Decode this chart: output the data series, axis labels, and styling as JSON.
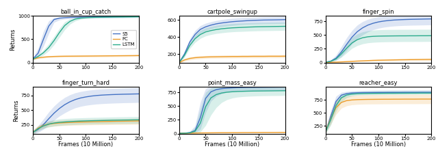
{
  "subplots": [
    {
      "title": "ball_in_cup_catch",
      "ylim": [
        0,
        1000
      ],
      "yticks": [
        0,
        500,
        1000
      ],
      "s5": [
        75,
        200,
        500,
        780,
        920,
        950,
        960,
        965,
        968,
        970,
        972,
        974,
        975,
        976,
        977,
        978,
        979,
        980,
        981,
        982,
        983
      ],
      "s5_lo": [
        50,
        120,
        350,
        620,
        860,
        910,
        930,
        940,
        945,
        948,
        950,
        952,
        953,
        954,
        955,
        956,
        957,
        958,
        959,
        960,
        961
      ],
      "s5_hi": [
        100,
        310,
        670,
        890,
        960,
        970,
        975,
        977,
        979,
        981,
        982,
        983,
        984,
        985,
        986,
        987,
        988,
        989,
        990,
        991,
        992
      ],
      "fc": [
        75,
        100,
        115,
        125,
        130,
        133,
        135,
        136,
        137,
        138,
        139,
        140,
        141,
        142,
        143,
        144,
        145,
        146,
        147,
        148,
        150
      ],
      "fc_lo": [
        60,
        80,
        95,
        105,
        110,
        112,
        114,
        115,
        116,
        117,
        118,
        119,
        120,
        121,
        122,
        123,
        124,
        125,
        126,
        127,
        128
      ],
      "fc_hi": [
        90,
        120,
        135,
        145,
        150,
        154,
        156,
        157,
        158,
        159,
        160,
        161,
        162,
        163,
        164,
        165,
        166,
        167,
        168,
        169,
        172
      ],
      "lstm": [
        75,
        130,
        210,
        320,
        470,
        640,
        790,
        880,
        930,
        950,
        960,
        965,
        968,
        970,
        972,
        974,
        975,
        976,
        977,
        978,
        980
      ],
      "lstm_lo": [
        55,
        100,
        160,
        250,
        380,
        540,
        700,
        820,
        890,
        925,
        940,
        948,
        952,
        955,
        957,
        959,
        960,
        961,
        962,
        963,
        965
      ],
      "lstm_hi": [
        95,
        165,
        270,
        400,
        560,
        730,
        870,
        935,
        960,
        970,
        975,
        978,
        980,
        982,
        984,
        986,
        987,
        988,
        989,
        990,
        992
      ]
    },
    {
      "title": "cartpole_swingup",
      "ylim": [
        100,
        650
      ],
      "yticks": [
        200,
        400,
        600
      ],
      "s5": [
        100,
        200,
        340,
        430,
        490,
        520,
        540,
        555,
        565,
        573,
        580,
        585,
        589,
        593,
        596,
        598,
        600,
        601,
        602,
        603,
        605
      ],
      "s5_lo": [
        90,
        175,
        305,
        385,
        445,
        476,
        497,
        512,
        522,
        530,
        536,
        542,
        546,
        549,
        552,
        554,
        556,
        557,
        558,
        559,
        561
      ],
      "s5_hi": [
        110,
        228,
        378,
        476,
        534,
        562,
        580,
        594,
        605,
        613,
        619,
        624,
        628,
        631,
        634,
        636,
        638,
        639,
        640,
        641,
        643
      ],
      "fc": [
        100,
        130,
        148,
        157,
        162,
        165,
        167,
        168,
        169,
        170,
        171,
        171,
        172,
        172,
        173,
        173,
        173,
        174,
        174,
        174,
        175
      ],
      "fc_lo": [
        90,
        115,
        130,
        140,
        145,
        148,
        150,
        151,
        152,
        153,
        153,
        154,
        154,
        155,
        155,
        155,
        156,
        156,
        156,
        156,
        157
      ],
      "fc_hi": [
        110,
        148,
        167,
        175,
        179,
        182,
        184,
        185,
        186,
        187,
        188,
        188,
        189,
        189,
        190,
        190,
        190,
        191,
        191,
        191,
        193
      ],
      "lstm": [
        100,
        185,
        300,
        380,
        430,
        460,
        476,
        488,
        497,
        503,
        508,
        511,
        514,
        517,
        519,
        521,
        522,
        523,
        524,
        525,
        526
      ],
      "lstm_lo": [
        90,
        163,
        265,
        337,
        384,
        413,
        429,
        441,
        449,
        456,
        461,
        464,
        466,
        469,
        471,
        473,
        474,
        475,
        476,
        477,
        478
      ],
      "lstm_hi": [
        110,
        209,
        338,
        425,
        477,
        508,
        524,
        537,
        546,
        553,
        558,
        561,
        564,
        566,
        568,
        570,
        571,
        572,
        573,
        574,
        575
      ]
    },
    {
      "title": "finger_spin",
      "ylim": [
        0,
        850
      ],
      "yticks": [
        0,
        250,
        500,
        750
      ],
      "s5": [
        5,
        25,
        80,
        190,
        330,
        460,
        560,
        630,
        680,
        714,
        738,
        754,
        765,
        773,
        778,
        782,
        785,
        787,
        789,
        791,
        793
      ],
      "s5_lo": [
        2,
        12,
        42,
        110,
        218,
        338,
        428,
        502,
        556,
        596,
        623,
        642,
        655,
        664,
        670,
        674,
        677,
        679,
        681,
        683,
        685
      ],
      "s5_hi": [
        9,
        46,
        136,
        288,
        450,
        582,
        680,
        744,
        786,
        814,
        833,
        847,
        857,
        864,
        869,
        873,
        876,
        879,
        881,
        883,
        885
      ],
      "fc": [
        2,
        5,
        8,
        12,
        17,
        22,
        27,
        31,
        35,
        39,
        42,
        44,
        46,
        48,
        50,
        51,
        53,
        54,
        55,
        56,
        57
      ],
      "fc_lo": [
        1,
        3,
        5,
        8,
        11,
        14,
        17,
        19,
        21,
        23,
        25,
        27,
        28,
        29,
        30,
        31,
        32,
        32,
        33,
        34,
        34
      ],
      "fc_hi": [
        4,
        8,
        12,
        17,
        23,
        30,
        38,
        44,
        49,
        55,
        59,
        62,
        64,
        67,
        70,
        72,
        74,
        76,
        77,
        79,
        80
      ],
      "lstm": [
        5,
        22,
        65,
        155,
        260,
        355,
        415,
        450,
        468,
        476,
        480,
        482,
        483,
        484,
        485,
        485,
        486,
        486,
        487,
        487,
        488
      ],
      "lstm_lo": [
        3,
        13,
        38,
        95,
        175,
        258,
        308,
        340,
        358,
        367,
        372,
        375,
        377,
        378,
        379,
        380,
        380,
        381,
        381,
        382,
        382
      ],
      "lstm_hi": [
        8,
        35,
        105,
        230,
        352,
        454,
        519,
        558,
        578,
        589,
        595,
        598,
        600,
        601,
        602,
        602,
        603,
        603,
        604,
        604,
        605
      ]
    },
    {
      "title": "finger_turn_hard",
      "ylim": [
        100,
        900
      ],
      "yticks": [
        250,
        500,
        750
      ],
      "s5": [
        120,
        175,
        255,
        355,
        450,
        530,
        595,
        645,
        683,
        710,
        728,
        742,
        752,
        759,
        764,
        768,
        771,
        774,
        776,
        778,
        780
      ],
      "s5_lo": [
        90,
        120,
        175,
        250,
        330,
        400,
        455,
        503,
        541,
        566,
        584,
        596,
        606,
        612,
        617,
        621,
        624,
        627,
        629,
        631,
        633
      ],
      "s5_hi": [
        155,
        238,
        348,
        470,
        572,
        654,
        718,
        765,
        798,
        820,
        836,
        848,
        857,
        863,
        868,
        872,
        876,
        879,
        881,
        884,
        886
      ],
      "fc": [
        120,
        195,
        240,
        262,
        274,
        282,
        287,
        291,
        295,
        298,
        300,
        302,
        304,
        306,
        308,
        310,
        312,
        313,
        315,
        316,
        318
      ],
      "fc_lo": [
        90,
        158,
        197,
        217,
        228,
        234,
        238,
        241,
        244,
        246,
        248,
        250,
        251,
        252,
        253,
        255,
        256,
        257,
        258,
        259,
        260
      ],
      "fc_hi": [
        155,
        238,
        284,
        307,
        320,
        328,
        333,
        337,
        340,
        343,
        345,
        347,
        348,
        350,
        352,
        354,
        356,
        357,
        359,
        360,
        362
      ],
      "lstm": [
        120,
        185,
        232,
        263,
        282,
        293,
        300,
        306,
        311,
        315,
        318,
        321,
        323,
        325,
        327,
        329,
        330,
        332,
        333,
        335,
        336
      ],
      "lstm_lo": [
        90,
        148,
        186,
        212,
        229,
        239,
        246,
        251,
        255,
        258,
        261,
        263,
        265,
        267,
        268,
        270,
        271,
        272,
        273,
        274,
        275
      ],
      "lstm_hi": [
        155,
        228,
        280,
        316,
        337,
        350,
        357,
        362,
        367,
        370,
        373,
        376,
        378,
        380,
        382,
        384,
        386,
        387,
        389,
        390,
        392
      ]
    },
    {
      "title": "point_mass_easy",
      "ylim": [
        0,
        850
      ],
      "yticks": [
        0,
        250,
        500,
        750
      ],
      "s5": [
        5,
        8,
        18,
        55,
        290,
        640,
        760,
        800,
        818,
        827,
        832,
        836,
        838,
        840,
        841,
        842,
        843,
        844,
        845,
        846,
        847
      ],
      "s5_lo": [
        2,
        4,
        7,
        15,
        80,
        380,
        590,
        680,
        725,
        750,
        763,
        770,
        774,
        777,
        779,
        780,
        781,
        782,
        783,
        784,
        785
      ],
      "s5_hi": [
        9,
        14,
        38,
        145,
        570,
        820,
        870,
        885,
        890,
        893,
        895,
        897,
        898,
        899,
        900,
        901,
        902,
        902,
        903,
        904,
        905
      ],
      "fc": [
        5,
        7,
        9,
        11,
        13,
        14,
        15,
        16,
        17,
        17,
        18,
        18,
        19,
        19,
        20,
        20,
        21,
        21,
        21,
        22,
        22
      ],
      "fc_lo": [
        3,
        5,
        6,
        7,
        8,
        9,
        10,
        10,
        11,
        11,
        12,
        12,
        12,
        13,
        13,
        13,
        14,
        14,
        14,
        14,
        15
      ],
      "fc_hi": [
        8,
        10,
        13,
        16,
        19,
        20,
        21,
        22,
        23,
        23,
        24,
        24,
        25,
        25,
        26,
        26,
        27,
        27,
        27,
        28,
        29
      ],
      "lstm": [
        5,
        8,
        15,
        42,
        190,
        490,
        650,
        710,
        738,
        753,
        761,
        766,
        769,
        772,
        774,
        775,
        776,
        777,
        778,
        779,
        780
      ],
      "lstm_lo": [
        2,
        4,
        6,
        10,
        30,
        150,
        340,
        476,
        565,
        617,
        647,
        664,
        673,
        679,
        683,
        686,
        688,
        690,
        691,
        692,
        693
      ],
      "lstm_hi": [
        9,
        13,
        32,
        112,
        450,
        750,
        830,
        855,
        866,
        872,
        876,
        879,
        881,
        883,
        884,
        885,
        886,
        887,
        888,
        889,
        890
      ]
    },
    {
      "title": "reacher_easy",
      "ylim": [
        100,
        1000
      ],
      "yticks": [
        250,
        500,
        750
      ],
      "s5": [
        130,
        430,
        720,
        840,
        870,
        882,
        887,
        889,
        890,
        891,
        892,
        892,
        893,
        893,
        893,
        894,
        894,
        894,
        895,
        895,
        895
      ],
      "s5_lo": [
        100,
        320,
        610,
        780,
        832,
        856,
        865,
        869,
        871,
        872,
        873,
        874,
        874,
        875,
        875,
        876,
        876,
        876,
        877,
        877,
        877
      ],
      "s5_hi": [
        165,
        545,
        820,
        895,
        912,
        921,
        926,
        929,
        931,
        933,
        934,
        935,
        936,
        937,
        937,
        938,
        938,
        938,
        939,
        939,
        939
      ],
      "fc": [
        140,
        390,
        600,
        700,
        735,
        748,
        754,
        757,
        759,
        760,
        761,
        762,
        762,
        763,
        763,
        764,
        764,
        764,
        765,
        765,
        765
      ],
      "fc_lo": [
        100,
        280,
        470,
        590,
        635,
        655,
        663,
        667,
        669,
        670,
        671,
        672,
        672,
        673,
        673,
        674,
        674,
        674,
        675,
        675,
        675
      ],
      "fc_hi": [
        190,
        510,
        720,
        800,
        825,
        838,
        844,
        847,
        849,
        851,
        852,
        853,
        854,
        854,
        855,
        855,
        856,
        856,
        857,
        857,
        857
      ],
      "lstm": [
        130,
        370,
        640,
        790,
        843,
        861,
        867,
        870,
        872,
        874,
        875,
        876,
        877,
        877,
        878,
        878,
        879,
        879,
        880,
        880,
        880
      ],
      "lstm_lo": [
        100,
        260,
        530,
        710,
        793,
        826,
        838,
        843,
        846,
        848,
        849,
        850,
        851,
        851,
        852,
        852,
        853,
        853,
        854,
        854,
        854
      ],
      "lstm_hi": [
        165,
        490,
        740,
        865,
        890,
        905,
        910,
        914,
        916,
        918,
        919,
        920,
        921,
        922,
        922,
        923,
        923,
        923,
        924,
        924,
        924
      ]
    }
  ],
  "colors": {
    "s5": "#4472c4",
    "fc": "#ed9c2a",
    "lstm": "#2aab8c"
  },
  "alpha_fill": 0.18,
  "x": [
    0,
    10,
    20,
    30,
    40,
    50,
    60,
    70,
    80,
    90,
    100,
    110,
    120,
    130,
    140,
    150,
    160,
    170,
    180,
    190,
    200
  ],
  "xlabel": "Frames (10 Million)",
  "ylabel": "Returns",
  "legend_labels": [
    "S5",
    "FC",
    "LSTM"
  ]
}
